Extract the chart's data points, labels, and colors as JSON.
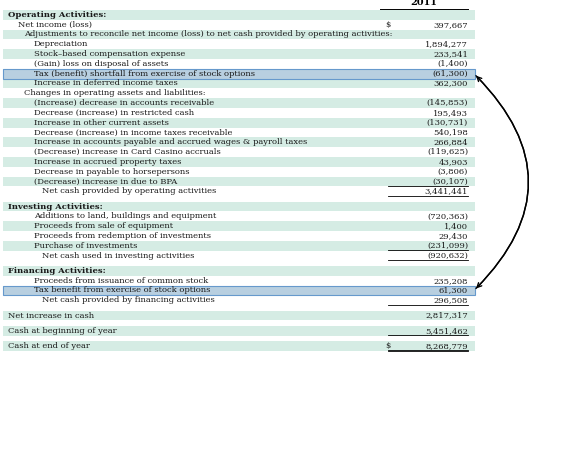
{
  "title_year": "2011",
  "rows": [
    {
      "label": "Operating Activities:",
      "value": "",
      "indent": 0,
      "bold": true,
      "bg": "#d5ece4",
      "white_gap": false
    },
    {
      "label": "Net income (loss)",
      "value": "$ 397,667",
      "indent": 1,
      "bold": false,
      "bg": "#ffffff",
      "dollar": true
    },
    {
      "label": "Adjustments to reconcile net income (loss) to net cash provided by operating activities:",
      "value": "",
      "indent": 2,
      "bold": false,
      "bg": "#d5ece4"
    },
    {
      "label": "Depreciation",
      "value": "1,894,277",
      "indent": 3,
      "bold": false,
      "bg": "#ffffff"
    },
    {
      "label": "Stock–based compensation expense",
      "value": "233,541",
      "indent": 3,
      "bold": false,
      "bg": "#d5ece4"
    },
    {
      "label": "(Gain) loss on disposal of assets",
      "value": "(1,400)",
      "indent": 3,
      "bold": false,
      "bg": "#ffffff"
    },
    {
      "label": "Tax (benefit) shortfall from exercise of stock options",
      "value": "(61,300)",
      "indent": 3,
      "bold": false,
      "bg": "#b8cfe0",
      "highlight": true
    },
    {
      "label": "Increase in deferred income taxes",
      "value": "362,300",
      "indent": 3,
      "bold": false,
      "bg": "#d5ece4"
    },
    {
      "label": "Changes in operating assets and liabilities:",
      "value": "",
      "indent": 2,
      "bold": false,
      "bg": "#ffffff"
    },
    {
      "label": "(Increase) decrease in accounts receivable",
      "value": "(145,853)",
      "indent": 3,
      "bold": false,
      "bg": "#d5ece4"
    },
    {
      "label": "Decrease (increase) in restricted cash",
      "value": "195,493",
      "indent": 3,
      "bold": false,
      "bg": "#ffffff"
    },
    {
      "label": "Increase in other current assets",
      "value": "(130,731)",
      "indent": 3,
      "bold": false,
      "bg": "#d5ece4"
    },
    {
      "label": "Decrease (increase) in income taxes receivable",
      "value": "540,198",
      "indent": 3,
      "bold": false,
      "bg": "#ffffff"
    },
    {
      "label": "Increase in accounts payable and accrued wages & payroll taxes",
      "value": "266,884",
      "indent": 3,
      "bold": false,
      "bg": "#d5ece4"
    },
    {
      "label": "(Decrease) increase in Card Casino accruals",
      "value": "(119,625)",
      "indent": 3,
      "bold": false,
      "bg": "#ffffff"
    },
    {
      "label": "Increase in accrued property taxes",
      "value": "43,903",
      "indent": 3,
      "bold": false,
      "bg": "#d5ece4"
    },
    {
      "label": "Decrease in payable to horsepersons",
      "value": "(3,806)",
      "indent": 3,
      "bold": false,
      "bg": "#ffffff"
    },
    {
      "label": "(Decrease) increase in due to BPA",
      "value": "(30,107)",
      "indent": 3,
      "bold": false,
      "bg": "#d5ece4",
      "underline_val": true
    },
    {
      "label": "Net cash provided by operating activities",
      "value": "3,441,441",
      "indent": 4,
      "bold": false,
      "bg": "#ffffff",
      "underline_val": true
    },
    {
      "label": "",
      "value": "",
      "indent": 0,
      "bold": false,
      "bg": "#ffffff",
      "gap": true
    },
    {
      "label": "Investing Activities:",
      "value": "",
      "indent": 0,
      "bold": true,
      "bg": "#d5ece4"
    },
    {
      "label": "Additions to land, buildings and equipment",
      "value": "(720,363)",
      "indent": 3,
      "bold": false,
      "bg": "#ffffff"
    },
    {
      "label": "Proceeds from sale of equipment",
      "value": "1,400",
      "indent": 3,
      "bold": false,
      "bg": "#d5ece4"
    },
    {
      "label": "Proceeds from redemption of investments",
      "value": "29,430",
      "indent": 3,
      "bold": false,
      "bg": "#ffffff"
    },
    {
      "label": "Purchase of investments",
      "value": "(231,099)",
      "indent": 3,
      "bold": false,
      "bg": "#d5ece4",
      "underline_val": true
    },
    {
      "label": "Net cash used in investing activities",
      "value": "(920,632)",
      "indent": 4,
      "bold": false,
      "bg": "#ffffff",
      "underline_val": true
    },
    {
      "label": "",
      "value": "",
      "indent": 0,
      "bold": false,
      "bg": "#ffffff",
      "gap": true
    },
    {
      "label": "Financing Activities:",
      "value": "",
      "indent": 0,
      "bold": true,
      "bg": "#d5ece4"
    },
    {
      "label": "Proceeds from issuance of common stock",
      "value": "235,208",
      "indent": 3,
      "bold": false,
      "bg": "#ffffff"
    },
    {
      "label": "Tax benefit from exercise of stock options",
      "value": "61,300",
      "indent": 3,
      "bold": false,
      "bg": "#b8cfe0",
      "highlight": true
    },
    {
      "label": "Net cash provided by financing activities",
      "value": "296,508",
      "indent": 4,
      "bold": false,
      "bg": "#ffffff",
      "underline_val": true
    },
    {
      "label": "",
      "value": "",
      "indent": 0,
      "bold": false,
      "bg": "#ffffff",
      "gap": true
    },
    {
      "label": "Net increase in cash",
      "value": "2,817,317",
      "indent": 0,
      "bold": false,
      "bg": "#d5ece4"
    },
    {
      "label": "",
      "value": "",
      "indent": 0,
      "bold": false,
      "bg": "#ffffff",
      "gap": true
    },
    {
      "label": "Cash at beginning of year",
      "value": "5,451,462",
      "indent": 0,
      "bold": false,
      "bg": "#d5ece4",
      "underline_val": true
    },
    {
      "label": "",
      "value": "",
      "indent": 0,
      "bold": false,
      "bg": "#ffffff",
      "gap": true
    },
    {
      "label": "Cash at end of year",
      "value": "$ 8,268,779",
      "indent": 0,
      "bold": false,
      "bg": "#d5ece4",
      "double_underline_val": true,
      "dollar": true
    }
  ]
}
